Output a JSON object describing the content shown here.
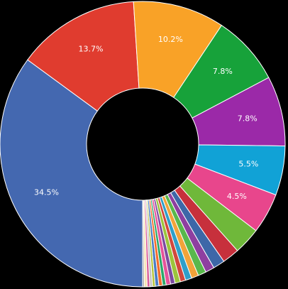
{
  "chart_data": {
    "type": "pie",
    "donut": true,
    "title": "",
    "start_angle_deg": 180,
    "direction": "clockwise",
    "slices": [
      {
        "value": 34.5,
        "label": "34.5%",
        "color": "#4468b0"
      },
      {
        "value": 13.7,
        "label": "13.7%",
        "color": "#e03c2f"
      },
      {
        "value": 10.2,
        "label": "10.2%",
        "color": "#f9a227"
      },
      {
        "value": 7.8,
        "label": "7.8%",
        "color": "#17a23a"
      },
      {
        "value": 7.8,
        "label": "7.8%",
        "color": "#9b29a8"
      },
      {
        "value": 5.5,
        "label": "5.5%",
        "color": "#11a2d6"
      },
      {
        "value": 4.5,
        "label": "4.5%",
        "color": "#e8468c"
      },
      {
        "value": 3.0,
        "label": "",
        "color": "#6fb83a"
      },
      {
        "value": 1.9,
        "label": "",
        "color": "#c7303c"
      },
      {
        "value": 1.3,
        "label": "",
        "color": "#3d67a8"
      },
      {
        "value": 1.0,
        "label": "",
        "color": "#8e3fa0"
      },
      {
        "value": 0.9,
        "label": "",
        "color": "#59b84c"
      },
      {
        "value": 0.8,
        "label": "",
        "color": "#f2a33a"
      },
      {
        "value": 0.7,
        "label": "",
        "color": "#2f9fc9"
      },
      {
        "value": 0.6,
        "label": "",
        "color": "#d2473c"
      },
      {
        "value": 0.6,
        "label": "",
        "color": "#9cc43c"
      },
      {
        "value": 0.5,
        "label": "",
        "color": "#7c4aa0"
      },
      {
        "value": 0.5,
        "label": "",
        "color": "#e5539a"
      },
      {
        "value": 0.4,
        "label": "",
        "color": "#2ba86a"
      },
      {
        "value": 0.4,
        "label": "",
        "color": "#f46c2c"
      },
      {
        "value": 0.4,
        "label": "",
        "color": "#4a7cc4"
      },
      {
        "value": 0.3,
        "label": "",
        "color": "#b8c43a"
      },
      {
        "value": 0.3,
        "label": "",
        "color": "#c3c3c3"
      },
      {
        "value": 0.3,
        "label": "",
        "color": "#d95f9a"
      },
      {
        "value": 0.3,
        "label": "",
        "color": "#f7e3b0"
      },
      {
        "value": 0.2,
        "label": "",
        "color": "#a9a9a9"
      }
    ]
  }
}
